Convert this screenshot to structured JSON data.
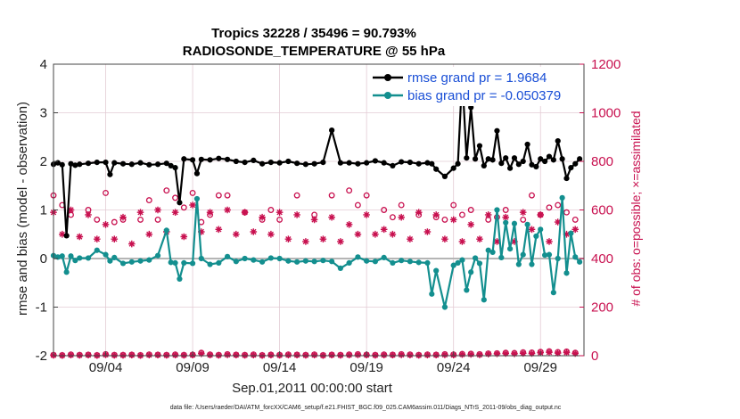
{
  "chart_data": {
    "type": "line",
    "title_line1": "Tropics 32228 / 35496 = 90.793%",
    "title_line2": "RADIOSONDE_TEMPERATURE @ 55 hPa",
    "xlabel": "Sep.01,2011 00:00:00 start",
    "ylabel_left": "rmse and bias (model - observation)",
    "ylabel_right": "# of obs: o=possible; ×=assimilated",
    "footnote": "data file: /Users/raeder/DAI/ATM_forcXX/CAM6_setup/f.e21.FHIST_BGC.f09_025.CAM6assim.011/Diags_NTrS_2011-09/obs_diag_output.nc",
    "xlim": [
      1,
      31.5
    ],
    "ylim_left": [
      -2,
      4
    ],
    "ylim_right": [
      0,
      1200
    ],
    "x_ticks": [
      {
        "value": 4,
        "label": "09/04"
      },
      {
        "value": 9,
        "label": "09/09"
      },
      {
        "value": 14,
        "label": "09/14"
      },
      {
        "value": 19,
        "label": "09/19"
      },
      {
        "value": 24,
        "label": "09/24"
      },
      {
        "value": 29,
        "label": "09/29"
      }
    ],
    "y_ticks_left": [
      {
        "value": -2,
        "label": "-2"
      },
      {
        "value": -1,
        "label": "-1"
      },
      {
        "value": 0,
        "label": "0"
      },
      {
        "value": 1,
        "label": "1"
      },
      {
        "value": 2,
        "label": "2"
      },
      {
        "value": 3,
        "label": "3"
      },
      {
        "value": 4,
        "label": "4"
      }
    ],
    "y_ticks_right": [
      {
        "value": 0,
        "label": "0"
      },
      {
        "value": 200,
        "label": "200"
      },
      {
        "value": 400,
        "label": "400"
      },
      {
        "value": 600,
        "label": "600"
      },
      {
        "value": 800,
        "label": "800"
      },
      {
        "value": 1000,
        "label": "1000"
      },
      {
        "value": 1200,
        "label": "1200"
      }
    ],
    "legend": [
      {
        "label": "rmse grand pr = 1.9684",
        "color": "#000000"
      },
      {
        "label": "bias grand pr = -0.050379",
        "color": "#138f8f"
      }
    ],
    "legend_position": "top-right",
    "grid": true,
    "colors": {
      "rmse": "#000000",
      "bias": "#138f8f",
      "obs": "#c8104f",
      "zero_line": "#b5b5b5"
    },
    "series": [
      {
        "name": "rmse",
        "x": [
          1,
          1.25,
          1.5,
          1.75,
          2,
          2.25,
          2.5,
          3,
          3.5,
          4,
          4.25,
          4.5,
          5,
          5.5,
          6,
          6.5,
          7,
          7.5,
          7.75,
          8,
          8.25,
          8.5,
          9,
          9.25,
          9.5,
          10,
          10.5,
          11,
          11.5,
          12,
          12.5,
          13,
          13.5,
          14,
          14.5,
          15,
          15.5,
          16,
          16.5,
          17,
          17.5,
          18,
          18.5,
          19,
          19.5,
          20,
          20.5,
          21,
          21.5,
          22,
          22.5,
          22.75,
          23,
          23.5,
          24,
          24.25,
          24.5,
          24.75,
          25,
          25.25,
          25.5,
          25.75,
          26,
          26.25,
          26.5,
          26.75,
          27,
          27.25,
          27.5,
          27.75,
          28,
          28.25,
          28.5,
          28.75,
          29,
          29.25,
          29.5,
          29.75,
          30,
          30.25,
          30.5,
          30.75,
          31,
          31.25
        ],
        "values": [
          1.94,
          1.97,
          1.93,
          0.47,
          1.95,
          1.92,
          1.94,
          1.96,
          1.98,
          1.98,
          1.73,
          1.97,
          1.95,
          1.94,
          1.97,
          1.93,
          1.94,
          1.96,
          1.91,
          1.87,
          1.15,
          2.05,
          2.03,
          1.75,
          2.04,
          2.03,
          2.06,
          2.04,
          2.0,
          1.98,
          2.02,
          1.95,
          1.98,
          1.97,
          2.0,
          1.96,
          1.94,
          1.95,
          1.98,
          2.64,
          1.97,
          1.97,
          1.95,
          1.97,
          2.01,
          1.97,
          1.91,
          1.99,
          1.98,
          1.95,
          1.97,
          1.95,
          1.84,
          1.69,
          1.86,
          1.95,
          3.75,
          2.07,
          3.11,
          2.05,
          2.32,
          1.91,
          2.05,
          2.03,
          2.63,
          1.96,
          2.07,
          1.86,
          2.07,
          1.94,
          2.0,
          2.35,
          1.93,
          1.89,
          2.05,
          2.0,
          2.1,
          2.03,
          2.42,
          2.05,
          1.65,
          1.87,
          1.95,
          2.05
        ]
      },
      {
        "name": "bias",
        "x": [
          1,
          1.25,
          1.5,
          1.75,
          2,
          2.25,
          2.5,
          3,
          3.5,
          4,
          4.25,
          4.5,
          5,
          5.5,
          6,
          6.5,
          7,
          7.5,
          7.75,
          8,
          8.25,
          8.5,
          9,
          9.25,
          9.5,
          10,
          10.5,
          11,
          11.5,
          12,
          12.5,
          13,
          13.5,
          14,
          14.5,
          15,
          15.5,
          16,
          16.5,
          17,
          17.5,
          18,
          18.5,
          19,
          19.5,
          20,
          20.5,
          21,
          21.5,
          22,
          22.5,
          22.75,
          23,
          23.5,
          24,
          24.25,
          24.5,
          24.75,
          25,
          25.25,
          25.5,
          25.75,
          26,
          26.25,
          26.5,
          26.75,
          27,
          27.25,
          27.5,
          27.75,
          28,
          28.25,
          28.5,
          28.75,
          29,
          29.25,
          29.5,
          29.75,
          30,
          30.25,
          30.5,
          30.75,
          31,
          31.25
        ],
        "values": [
          0.06,
          0.03,
          0.05,
          -0.28,
          0.05,
          -0.04,
          0.01,
          0.01,
          0.17,
          0.08,
          -0.05,
          0.02,
          -0.1,
          -0.07,
          -0.05,
          -0.03,
          0.06,
          0.58,
          -0.08,
          -0.09,
          -0.42,
          -0.09,
          -0.1,
          1.23,
          0.0,
          -0.12,
          -0.09,
          0.04,
          -0.06,
          0.0,
          -0.03,
          -0.07,
          0.01,
          0.0,
          -0.05,
          -0.07,
          -0.05,
          -0.06,
          -0.04,
          -0.06,
          -0.2,
          -0.09,
          0.03,
          -0.05,
          -0.06,
          0.02,
          -0.09,
          -0.04,
          -0.06,
          -0.08,
          -0.09,
          -0.73,
          -0.25,
          -1.0,
          -0.14,
          -0.09,
          -0.03,
          -0.65,
          -0.28,
          0.01,
          -0.1,
          -0.85,
          0.17,
          0.13,
          1.0,
          0.02,
          0.74,
          0.2,
          0.72,
          -0.12,
          0.08,
          0.7,
          -0.12,
          0.46,
          0.6,
          0.07,
          0.08,
          -0.7,
          0.0,
          1.25,
          -0.3,
          0.52,
          0.03,
          -0.07
        ]
      },
      {
        "name": "obs_possible",
        "x": [
          1,
          1.5,
          2,
          3,
          3.5,
          4,
          4.5,
          5,
          6,
          6.5,
          7,
          7.5,
          8,
          8.5,
          9,
          9.5,
          10,
          10.5,
          11,
          12,
          13,
          13.5,
          14,
          15,
          16,
          17,
          18,
          18.5,
          19,
          20,
          20.5,
          21,
          22,
          23,
          23.5,
          24,
          24.5,
          25,
          26,
          26.5,
          27,
          28,
          28.5,
          29,
          29.5,
          30,
          30.5,
          31
        ],
        "values": [
          660,
          620,
          580,
          600,
          560,
          670,
          550,
          560,
          560,
          640,
          560,
          680,
          650,
          610,
          670,
          550,
          580,
          660,
          660,
          590,
          560,
          600,
          560,
          660,
          580,
          660,
          680,
          620,
          660,
          600,
          570,
          620,
          580,
          570,
          560,
          620,
          580,
          600,
          560,
          570,
          600,
          560,
          660,
          580,
          610,
          620,
          590,
          560
        ]
      },
      {
        "name": "obs_assimilated",
        "x": [
          1,
          1.5,
          2,
          2.5,
          3,
          3.5,
          4,
          4.5,
          5,
          5.5,
          6,
          6.5,
          7,
          7.5,
          8,
          8.5,
          9,
          9.5,
          10,
          10.5,
          11,
          11.5,
          12,
          12.5,
          13,
          13.5,
          14,
          14.5,
          15,
          15.5,
          16,
          16.5,
          17,
          17.5,
          18,
          18.5,
          19,
          19.5,
          20,
          20.5,
          21,
          21.5,
          22,
          22.5,
          23,
          23.5,
          24,
          24.5,
          25,
          25.5,
          26,
          26.5,
          27,
          27.5,
          28,
          28.5,
          29,
          29.5,
          30,
          30.5,
          31
        ],
        "values": [
          590,
          500,
          600,
          490,
          580,
          480,
          540,
          480,
          570,
          460,
          590,
          500,
          600,
          510,
          590,
          490,
          620,
          510,
          590,
          520,
          600,
          500,
          590,
          510,
          570,
          500,
          590,
          480,
          580,
          470,
          560,
          480,
          570,
          470,
          540,
          500,
          580,
          500,
          520,
          500,
          570,
          480,
          590,
          510,
          580,
          480,
          560,
          470,
          540,
          480,
          580,
          470,
          570,
          470,
          590,
          520,
          580,
          470,
          550,
          500,
          520
        ]
      },
      {
        "name": "obs_possible_bottom",
        "x": [
          1,
          1.5,
          2,
          2.5,
          3,
          3.5,
          4,
          4.5,
          5,
          5.5,
          6,
          6.5,
          7,
          7.5,
          8,
          8.5,
          9,
          9.5,
          10,
          10.5,
          11,
          11.5,
          12,
          12.5,
          13,
          13.5,
          14,
          14.5,
          15,
          15.5,
          16,
          16.5,
          17,
          17.5,
          18,
          18.5,
          19,
          19.5,
          20,
          20.5,
          21,
          21.5,
          22,
          22.5,
          23,
          23.5,
          24,
          24.5,
          25,
          25.5,
          26,
          26.5,
          27,
          27.5,
          28,
          28.5,
          29,
          29.5,
          30,
          30.5,
          31
        ],
        "values": [
          3,
          2,
          5,
          3,
          4,
          2,
          6,
          3,
          3,
          4,
          2,
          5,
          4,
          3,
          5,
          3,
          4,
          12,
          5,
          3,
          6,
          4,
          3,
          5,
          2,
          4,
          3,
          5,
          4,
          3,
          5,
          2,
          4,
          3,
          5,
          6,
          4,
          3,
          5,
          4,
          6,
          5,
          3,
          5,
          4,
          6,
          5,
          7,
          8,
          6,
          9,
          10,
          12,
          11,
          14,
          13,
          16,
          18,
          15,
          17,
          12
        ]
      },
      {
        "name": "obs_assimilated_bottom",
        "x": [
          1,
          1.5,
          2,
          2.5,
          3,
          3.5,
          4,
          4.5,
          5,
          5.5,
          6,
          6.5,
          7,
          7.5,
          8,
          8.5,
          9,
          9.5,
          10,
          10.5,
          11,
          11.5,
          12,
          12.5,
          13,
          13.5,
          14,
          14.5,
          15,
          15.5,
          16,
          16.5,
          17,
          17.5,
          18,
          18.5,
          19,
          19.5,
          20,
          20.5,
          21,
          21.5,
          22,
          22.5,
          23,
          23.5,
          24,
          24.5,
          25,
          25.5,
          26,
          26.5,
          27,
          27.5,
          28,
          28.5,
          29,
          29.5,
          30,
          30.5,
          31
        ],
        "values": [
          2,
          1,
          3,
          2,
          3,
          1,
          4,
          2,
          2,
          3,
          1,
          3,
          3,
          2,
          3,
          2,
          3,
          8,
          3,
          2,
          4,
          3,
          2,
          3,
          1,
          3,
          2,
          3,
          3,
          2,
          3,
          1,
          3,
          2,
          3,
          4,
          3,
          2,
          3,
          3,
          4,
          3,
          2,
          3,
          3,
          4,
          3,
          5,
          6,
          4,
          7,
          8,
          9,
          8,
          10,
          9,
          12,
          14,
          11,
          13,
          9
        ]
      }
    ]
  }
}
